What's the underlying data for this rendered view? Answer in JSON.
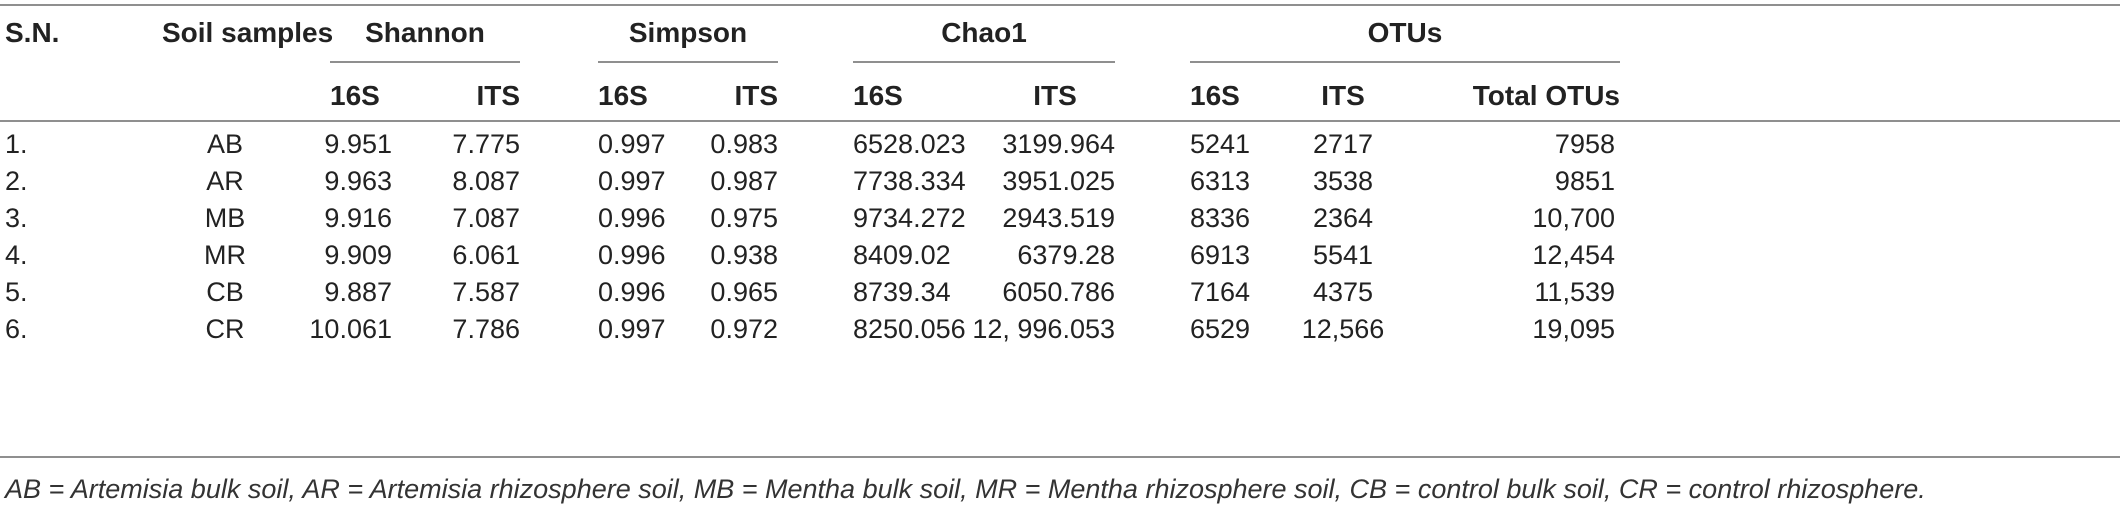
{
  "header": {
    "sn": "S.N.",
    "samples": "Soil samples",
    "shannon": "Shannon",
    "simpson": "Simpson",
    "chao1": "Chao1",
    "otus": "OTUs",
    "sub": [
      "16S",
      "ITS",
      "16S",
      "ITS",
      "16S",
      "ITS",
      "16S",
      "ITS",
      "Total OTUs"
    ]
  },
  "rows": [
    {
      "sn": "1.",
      "sample": "AB",
      "sh16": "9.951",
      "shits": "7.775",
      "si16": "0.997",
      "siits": "0.983",
      "ch16": "6528.023",
      "chits": "3199.964",
      "ot16": "5241",
      "otits": "2717",
      "total": "7958"
    },
    {
      "sn": "2.",
      "sample": "AR",
      "sh16": "9.963",
      "shits": "8.087",
      "si16": "0.997",
      "siits": "0.987",
      "ch16": "7738.334",
      "chits": "3951.025",
      "ot16": "6313",
      "otits": "3538",
      "total": "9851"
    },
    {
      "sn": "3.",
      "sample": "MB",
      "sh16": "9.916",
      "shits": "7.087",
      "si16": "0.996",
      "siits": "0.975",
      "ch16": "9734.272",
      "chits": "2943.519",
      "ot16": "8336",
      "otits": "2364",
      "total": "10,700"
    },
    {
      "sn": "4.",
      "sample": "MR",
      "sh16": "9.909",
      "shits": "6.061",
      "si16": "0.996",
      "siits": "0.938",
      "ch16": "8409.02",
      "chits": "6379.28",
      "ot16": "6913",
      "otits": "5541",
      "total": "12,454"
    },
    {
      "sn": "5.",
      "sample": "CB",
      "sh16": "9.887",
      "shits": "7.587",
      "si16": "0.996",
      "siits": "0.965",
      "ch16": "8739.34",
      "chits": "6050.786",
      "ot16": "7164",
      "otits": "4375",
      "total": "11,539"
    },
    {
      "sn": "6.",
      "sample": "CR",
      "sh16": "10.061",
      "shits": "7.786",
      "si16": "0.997",
      "siits": "0.972",
      "ch16": "8250.056",
      "chits": "12, 996.053",
      "ot16": "6529",
      "otits": "12,566",
      "total": "19,095"
    }
  ],
  "footnote": "AB = Artemisia bulk soil, AR = Artemisia rhizosphere soil, MB = Mentha bulk soil, MR = Mentha rhizosphere soil, CB = control bulk soil, CR = control rhizosphere."
}
